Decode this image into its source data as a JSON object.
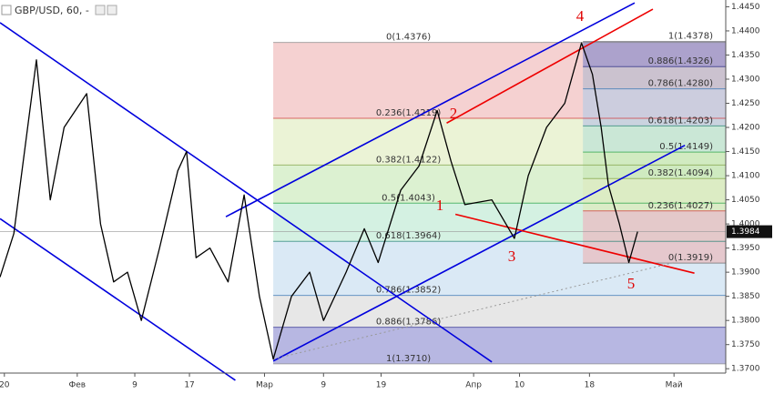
{
  "chart_data": {
    "type": "line",
    "title": "GBP/USD, 60, -",
    "color": "#000000",
    "x": [
      0,
      1.9,
      5,
      6.9,
      8.8,
      11.9,
      13.8,
      15.6,
      17.5,
      19.4,
      21.9,
      24.4,
      25.6,
      26.9,
      28.8,
      31.3,
      33.5,
      35.6,
      37.5,
      40,
      42.5,
      44.4,
      47.5,
      50,
      51.9,
      55,
      57.5,
      60,
      61.9,
      63.8,
      67.5,
      70.6,
      72.5,
      75,
      77.5,
      79.8,
      81.3,
      82.5,
      83.5,
      85,
      86.3,
      87.5
    ],
    "values": [
      1.389,
      1.398,
      1.434,
      1.405,
      1.42,
      1.427,
      1.4,
      1.388,
      1.39,
      1.38,
      1.395,
      1.411,
      1.415,
      1.393,
      1.395,
      1.388,
      1.406,
      1.385,
      1.372,
      1.385,
      1.39,
      1.38,
      1.39,
      1.399,
      1.392,
      1.407,
      1.412,
      1.4235,
      1.413,
      1.404,
      1.405,
      1.397,
      1.41,
      1.42,
      1.425,
      1.4375,
      1.431,
      1.42,
      1.408,
      1.4,
      1.392,
      1.3984
    ],
    "last": 1.3984,
    "xlim": [
      0,
      99.6
    ],
    "ylim": [
      1.3691,
      1.4464
    ],
    "xticks": [
      {
        "value": 0.6,
        "label": "20"
      },
      {
        "value": 10.6,
        "label": "Фев"
      },
      {
        "value": 18.5,
        "label": "9"
      },
      {
        "value": 26,
        "label": "17"
      },
      {
        "value": 36.3,
        "label": "Мар"
      },
      {
        "value": 44.4,
        "label": "9"
      },
      {
        "value": 52.3,
        "label": "19"
      },
      {
        "value": 65,
        "label": "Апр"
      },
      {
        "value": 71.3,
        "label": "10"
      },
      {
        "value": 80.9,
        "label": "18"
      },
      {
        "value": 92.5,
        "label": "Май"
      }
    ],
    "yticks": [
      {
        "value": 1.37,
        "label": "1.3700"
      },
      {
        "value": 1.375,
        "label": "1.3750"
      },
      {
        "value": 1.38,
        "label": "1.3800"
      },
      {
        "value": 1.385,
        "label": "1.3850"
      },
      {
        "value": 1.39,
        "label": "1.3900"
      },
      {
        "value": 1.395,
        "label": "1.3950"
      },
      {
        "value": 1.4,
        "label": "1.4000"
      },
      {
        "value": 1.405,
        "label": "1.4050"
      },
      {
        "value": 1.41,
        "label": "1.4100"
      },
      {
        "value": 1.415,
        "label": "1.4150"
      },
      {
        "value": 1.42,
        "label": "1.4200"
      },
      {
        "value": 1.425,
        "label": "1.4250"
      },
      {
        "value": 1.43,
        "label": "1.4300"
      },
      {
        "value": 1.435,
        "label": "1.4350"
      },
      {
        "value": 1.44,
        "label": "1.4400"
      },
      {
        "value": 1.445,
        "label": "1.4450"
      }
    ],
    "fibs": [
      {
        "x_start": 37.5,
        "label_align": "middle",
        "levels": [
          {
            "value": 1.4376,
            "label": "0(1.4376)",
            "color": "#888888"
          },
          {
            "value": 1.4219,
            "label": "0.236(1.4219)",
            "color": "#d03030"
          },
          {
            "value": 1.4122,
            "label": "0.382(1.4122)",
            "color": "#7fa040"
          },
          {
            "value": 1.4043,
            "label": "0.5(1.4043)",
            "color": "#20a040"
          },
          {
            "value": 1.3964,
            "label": "0.618(1.3964)",
            "color": "#208070"
          },
          {
            "value": 1.3852,
            "label": "0.786(1.3852)",
            "color": "#3070b0"
          },
          {
            "value": 1.3786,
            "label": "0.886(1.3786)",
            "color": "#303090"
          },
          {
            "value": 1.371,
            "label": "1(1.3710)",
            "color": "#888888"
          }
        ],
        "band_colors": [
          "#f3c9c9",
          "#e7f1cf",
          "#d6efc9",
          "#cdeedd",
          "#d3e5f3",
          "#e3e3e3",
          "#aaaadd"
        ]
      },
      {
        "x_start": 80,
        "label_align": "end",
        "levels": [
          {
            "value": 1.4378,
            "label": "1(1.4378)",
            "color": "#666666"
          },
          {
            "value": 1.4326,
            "label": "0.886(1.4326)",
            "color": "#202080"
          },
          {
            "value": 1.428,
            "label": "0.786(1.4280)",
            "color": "#3070b0"
          },
          {
            "value": 1.4203,
            "label": "0.618(1.4203)",
            "color": "#208070"
          },
          {
            "value": 1.4149,
            "label": "0.5(1.4149)",
            "color": "#20a040"
          },
          {
            "value": 1.4094,
            "label": "0.382(1.4094)",
            "color": "#7fa040"
          },
          {
            "value": 1.4027,
            "label": "0.236(1.4027)",
            "color": "#d03030"
          },
          {
            "value": 1.3919,
            "label": "0(1.3919)",
            "color": "#666666"
          }
        ],
        "band_colors": [
          "#9f9acb",
          "#c3bfcf",
          "#c4cde0",
          "#c4e4d6",
          "#cde9bd",
          "#dcebc2",
          "#e6c2c6"
        ]
      }
    ],
    "lines": [
      {
        "color": "#0000dd",
        "x": [
          0,
          67.5
        ],
        "values": [
          1.4417,
          1.3714
        ]
      },
      {
        "color": "#0000dd",
        "x": [
          0,
          32.3
        ],
        "values": [
          1.4011,
          1.3676
        ]
      },
      {
        "color": "#0000dd",
        "x": [
          37.5,
          94
        ],
        "values": [
          1.3716,
          1.4163
        ]
      },
      {
        "color": "#0000dd",
        "x": [
          31,
          87.1
        ],
        "values": [
          1.4015,
          1.4458
        ]
      },
      {
        "color": "#ee0000",
        "x": [
          61.3,
          89.6
        ],
        "values": [
          1.4209,
          1.4445
        ]
      },
      {
        "color": "#ee0000",
        "x": [
          62.5,
          95.3
        ],
        "values": [
          1.402,
          1.3898
        ]
      },
      {
        "color": "#999999",
        "dashed": true,
        "x": [
          37.5,
          92.5
        ],
        "values": [
          1.372,
          1.392
        ]
      }
    ],
    "annotations": [
      "1",
      "2",
      "3",
      "4",
      "5"
    ]
  }
}
